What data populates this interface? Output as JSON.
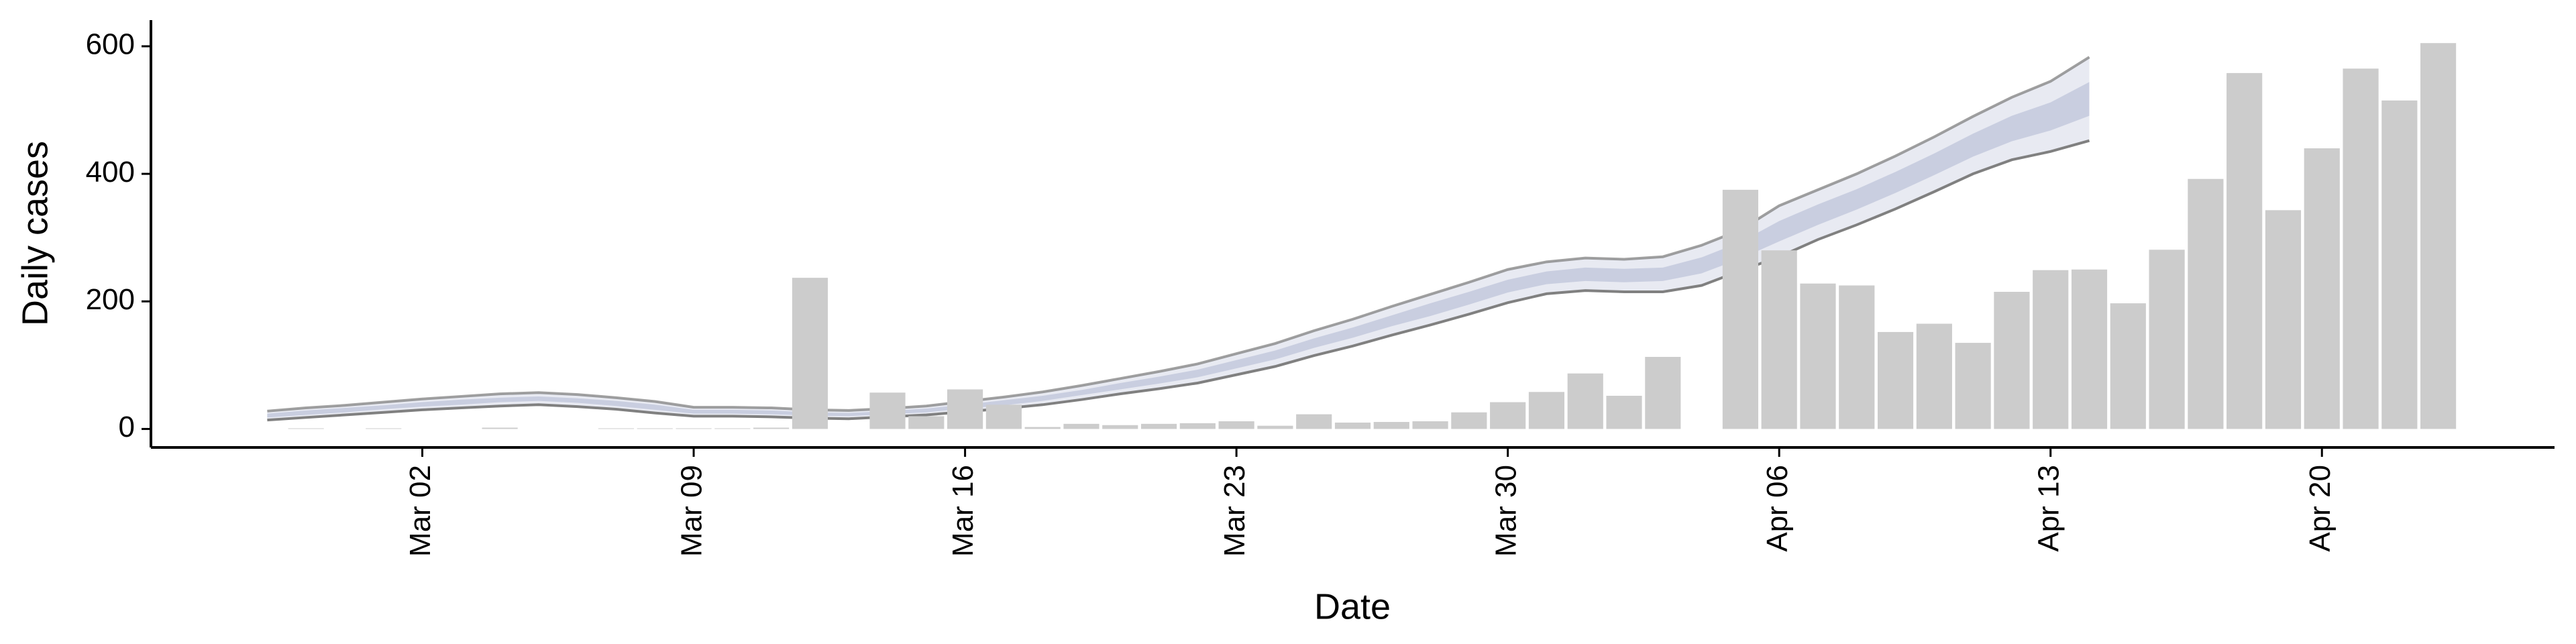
{
  "chart_data": {
    "type": "bar",
    "y_label": "Daily cases",
    "x_label": "Date",
    "xlim": [
      "Feb 24",
      "Apr 26"
    ],
    "ylim": [
      -29,
      641
    ],
    "yticks": [
      0,
      200,
      400,
      600
    ],
    "xticks": [
      "Mar 02",
      "Mar 09",
      "Mar 16",
      "Mar 23",
      "Mar 30",
      "Apr 06",
      "Apr 13",
      "Apr 20"
    ],
    "bars": {
      "color": "#cccccc",
      "x": [
        "Feb 28",
        "Feb 29",
        "Mar 01",
        "Mar 02",
        "Mar 03",
        "Mar 04",
        "Mar 05",
        "Mar 06",
        "Mar 07",
        "Mar 08",
        "Mar 09",
        "Mar 10",
        "Mar 11",
        "Mar 12",
        "Mar 13",
        "Mar 14",
        "Mar 15",
        "Mar 16",
        "Mar 17",
        "Mar 18",
        "Mar 19",
        "Mar 20",
        "Mar 21",
        "Mar 22",
        "Mar 23",
        "Mar 24",
        "Mar 25",
        "Mar 26",
        "Mar 27",
        "Mar 28",
        "Mar 29",
        "Mar 30",
        "Mar 31",
        "Apr 01",
        "Apr 02",
        "Apr 03",
        "Apr 04",
        "Apr 05",
        "Apr 06",
        "Apr 07",
        "Apr 08",
        "Apr 09",
        "Apr 10",
        "Apr 11",
        "Apr 12",
        "Apr 13",
        "Apr 14",
        "Apr 15",
        "Apr 16",
        "Apr 17",
        "Apr 18",
        "Apr 19",
        "Apr 20",
        "Apr 21",
        "Apr 22",
        "Apr 23"
      ],
      "values": [
        1,
        0,
        1,
        0,
        0,
        2,
        0,
        0,
        1,
        1,
        1,
        1,
        2,
        237,
        0,
        57,
        20,
        62,
        38,
        3,
        8,
        6,
        8,
        9,
        12,
        5,
        23,
        10,
        11,
        12,
        26,
        42,
        58,
        87,
        52,
        113,
        0,
        375,
        280,
        228,
        225,
        152,
        165,
        135,
        215,
        249,
        250,
        197,
        281,
        392,
        558,
        343,
        440,
        565,
        515,
        605
      ]
    },
    "band": {
      "fill": "#e8eaf2",
      "inner_fill": "#c9cee0",
      "line_color": "#808080",
      "x": [
        "Feb 27",
        "Feb 28",
        "Feb 29",
        "Mar 01",
        "Mar 02",
        "Mar 03",
        "Mar 04",
        "Mar 05",
        "Mar 06",
        "Mar 07",
        "Mar 08",
        "Mar 09",
        "Mar 10",
        "Mar 11",
        "Mar 12",
        "Mar 13",
        "Mar 14",
        "Mar 15",
        "Mar 16",
        "Mar 17",
        "Mar 18",
        "Mar 19",
        "Mar 20",
        "Mar 21",
        "Mar 22",
        "Mar 23",
        "Mar 24",
        "Mar 25",
        "Mar 26",
        "Mar 27",
        "Mar 28",
        "Mar 29",
        "Mar 30",
        "Mar 31",
        "Apr 01",
        "Apr 02",
        "Apr 03",
        "Apr 04",
        "Apr 05",
        "Apr 06",
        "Apr 07",
        "Apr 08",
        "Apr 09",
        "Apr 10",
        "Apr 11",
        "Apr 12",
        "Apr 13",
        "Apr 14"
      ],
      "upper": [
        28,
        33,
        37,
        42,
        47,
        51,
        55,
        57,
        54,
        49,
        43,
        34,
        34,
        33,
        30,
        29,
        32,
        36,
        43,
        50,
        58,
        68,
        79,
        90,
        102,
        118,
        134,
        154,
        172,
        192,
        211,
        230,
        250,
        262,
        268,
        266,
        270,
        288,
        312,
        350,
        375,
        400,
        428,
        458,
        490,
        520,
        545,
        583
      ],
      "lower": [
        14,
        18,
        22,
        26,
        30,
        33,
        36,
        38,
        35,
        31,
        25,
        20,
        20,
        19,
        17,
        16,
        19,
        22,
        27,
        32,
        38,
        46,
        55,
        63,
        72,
        85,
        98,
        115,
        130,
        147,
        163,
        180,
        198,
        212,
        217,
        215,
        215,
        225,
        248,
        270,
        297,
        320,
        345,
        372,
        400,
        422,
        435,
        452
      ],
      "inner_lower": [
        18,
        22,
        26,
        31,
        35,
        38,
        42,
        44,
        41,
        36,
        30,
        24,
        24,
        23,
        21,
        20,
        23,
        26,
        32,
        37,
        44,
        53,
        62,
        71,
        81,
        95,
        109,
        127,
        143,
        161,
        177,
        195,
        214,
        227,
        232,
        230,
        232,
        244,
        267,
        294,
        320,
        344,
        370,
        398,
        427,
        451,
        468,
        491
      ],
      "inner_upper": [
        24,
        29,
        33,
        37,
        42,
        46,
        49,
        51,
        48,
        44,
        38,
        30,
        30,
        29,
        26,
        25,
        28,
        32,
        38,
        45,
        52,
        61,
        72,
        82,
        93,
        108,
        123,
        142,
        159,
        178,
        197,
        215,
        234,
        247,
        253,
        251,
        253,
        269,
        293,
        326,
        352,
        376,
        403,
        432,
        463,
        491,
        512,
        544
      ]
    }
  }
}
